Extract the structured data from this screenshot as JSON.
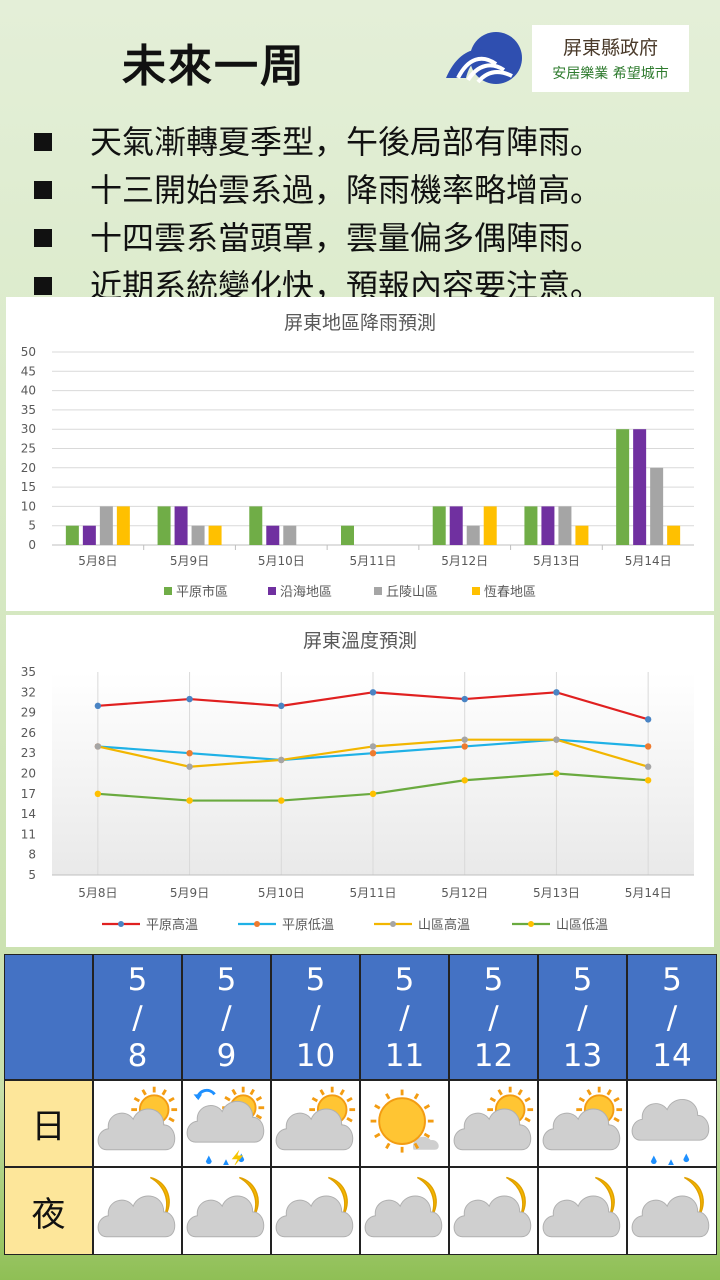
{
  "title": "未來一周",
  "logo": {
    "top": "屏東縣政府",
    "bottom": "安居樂業 希望城市"
  },
  "bullets": [
    "天氣漸轉夏季型，午後局部有陣雨。",
    "十三開始雲系過，降雨機率略增高。",
    "十四雲系當頭罩，雲量偏多偶陣雨。",
    "近期系統變化快，預報內容要注意。"
  ],
  "colors": {
    "plain": "#70ad47",
    "coastal": "#7030a0",
    "hill": "#a5a5a5",
    "hengchun": "#ffc000",
    "high": "#e02020",
    "low": "#1fb1e6",
    "mhigh": "#f2b600",
    "mlow": "#6aaa3f",
    "header": "#4472c4"
  },
  "chart_data": [
    {
      "type": "bar",
      "title": "屏東地區降雨預測",
      "categories": [
        "5月8日",
        "5月9日",
        "5月10日",
        "5月11日",
        "5月12日",
        "5月13日",
        "5月14日"
      ],
      "ylim": [
        0,
        50
      ],
      "yticks": [
        0,
        5,
        10,
        15,
        20,
        25,
        30,
        35,
        40,
        45,
        50
      ],
      "legend_position": "bottom",
      "series": [
        {
          "name": "平原市區",
          "values": [
            5,
            10,
            10,
            5,
            10,
            10,
            30
          ]
        },
        {
          "name": "沿海地區",
          "values": [
            5,
            10,
            5,
            0,
            10,
            10,
            30
          ]
        },
        {
          "name": "丘陵山區",
          "values": [
            10,
            5,
            5,
            0,
            5,
            10,
            20
          ]
        },
        {
          "name": "恆春地區",
          "values": [
            10,
            5,
            0,
            0,
            10,
            5,
            5
          ]
        }
      ]
    },
    {
      "type": "line",
      "title": "屏東溫度預測",
      "categories": [
        "5月8日",
        "5月9日",
        "5月10日",
        "5月11日",
        "5月12日",
        "5月13日",
        "5月14日"
      ],
      "ylim": [
        5,
        35
      ],
      "yticks": [
        5,
        8,
        11,
        14,
        17,
        20,
        23,
        26,
        29,
        32,
        35
      ],
      "legend_position": "bottom",
      "series": [
        {
          "name": "平原高溫",
          "values": [
            30,
            31,
            30,
            32,
            31,
            32,
            28
          ]
        },
        {
          "name": "平原低溫",
          "values": [
            24,
            23,
            22,
            23,
            24,
            25,
            24
          ]
        },
        {
          "name": "山區高溫",
          "values": [
            24,
            21,
            22,
            24,
            25,
            25,
            21
          ]
        },
        {
          "name": "山區低溫",
          "values": [
            17,
            16,
            16,
            17,
            19,
            20,
            19
          ]
        }
      ]
    }
  ],
  "table": {
    "dates": [
      {
        "m": "5",
        "sep": "/",
        "d": "8"
      },
      {
        "m": "5",
        "sep": "/",
        "d": "9"
      },
      {
        "m": "5",
        "sep": "/",
        "d": "10"
      },
      {
        "m": "5",
        "sep": "/",
        "d": "11"
      },
      {
        "m": "5",
        "sep": "/",
        "d": "12"
      },
      {
        "m": "5",
        "sep": "/",
        "d": "13"
      },
      {
        "m": "5",
        "sep": "/",
        "d": "14"
      }
    ],
    "day_label": "日",
    "night_label": "夜",
    "day_icons": [
      "partly-cloudy-icon",
      "thunder-rain-icon",
      "partly-cloudy-icon",
      "sunny-icon",
      "partly-cloudy-icon",
      "partly-cloudy-icon",
      "cloudy-rain-icon"
    ],
    "night_icons": [
      "cloudy-night-icon",
      "cloudy-night-icon",
      "cloudy-night-icon",
      "cloudy-night-icon",
      "cloudy-night-icon",
      "cloudy-night-icon",
      "cloudy-night-icon"
    ]
  }
}
